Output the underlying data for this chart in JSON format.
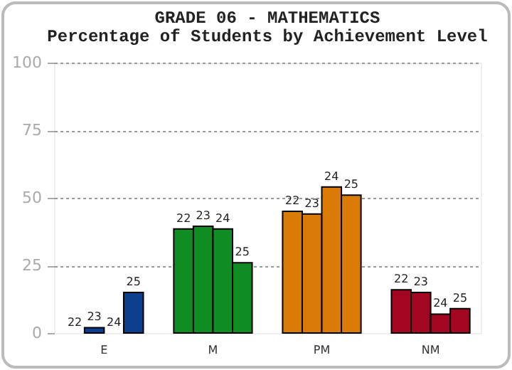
{
  "chart_data": {
    "type": "bar",
    "title": "GRADE 06 - MATHEMATICS",
    "subtitle": "Percentage of Students by Achievement Level",
    "categories": [
      "E",
      "M",
      "PM",
      "NM"
    ],
    "series": [
      {
        "name": "22",
        "colors": [
          "#0b3f8c",
          "#0f8c22",
          "#d97b06",
          "#a30620"
        ],
        "values": [
          0,
          38.5,
          45,
          16
        ]
      },
      {
        "name": "23",
        "colors": [
          "#0b3f8c",
          "#0f8c22",
          "#d97b06",
          "#a30620"
        ],
        "values": [
          2,
          39.5,
          44,
          15
        ]
      },
      {
        "name": "24",
        "colors": [
          "#0b3f8c",
          "#0f8c22",
          "#d97b06",
          "#a30620"
        ],
        "values": [
          0,
          38.5,
          54,
          7
        ]
      },
      {
        "name": "25",
        "colors": [
          "#0b3f8c",
          "#0f8c22",
          "#d97b06",
          "#a30620"
        ],
        "values": [
          15,
          26,
          51,
          9
        ]
      }
    ],
    "ylim": [
      0,
      100
    ],
    "yticks": [
      0,
      25,
      50,
      75,
      100
    ],
    "grid": "y"
  }
}
